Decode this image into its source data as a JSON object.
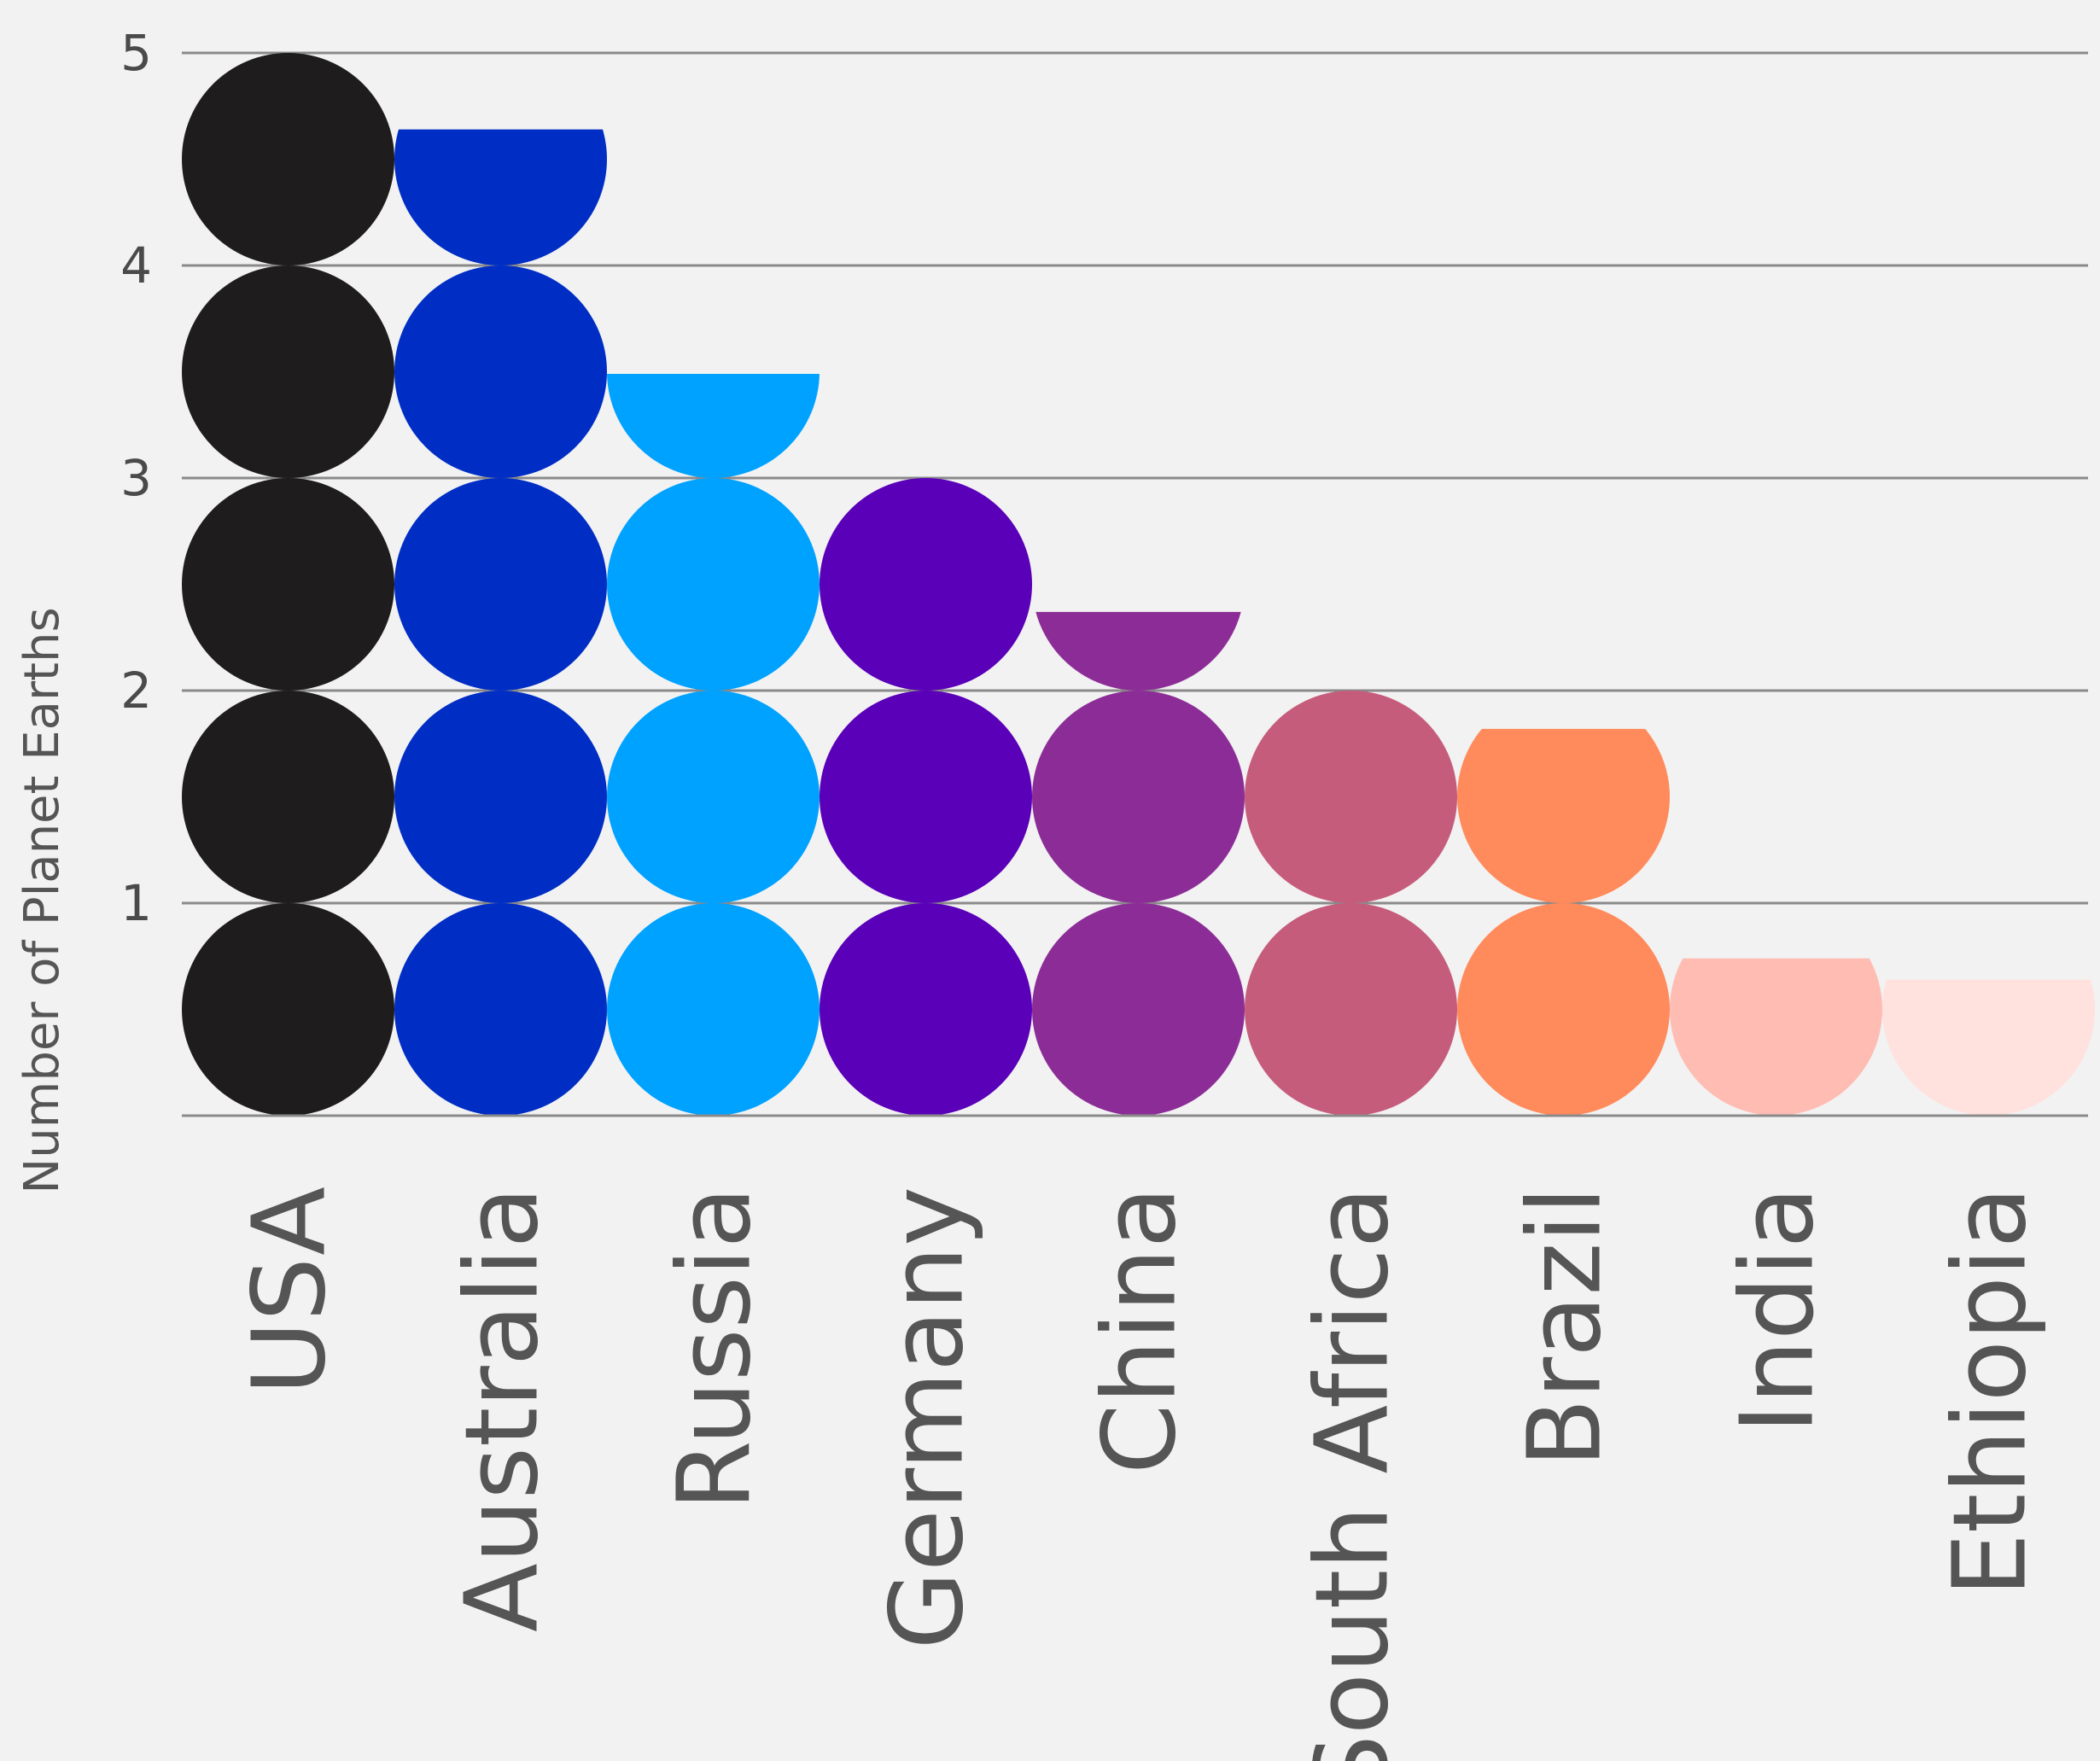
{
  "chart_data": {
    "type": "bar",
    "style": "pictogram-circles",
    "ylabel": "Number of Planet Earths",
    "ylim": [
      0,
      5
    ],
    "yticks": [
      "1",
      "2",
      "3",
      "4",
      "5"
    ],
    "grid": true,
    "legend": "none",
    "categories": [
      "USA",
      "Australia",
      "Russia",
      "Germany",
      "China",
      "South Africa",
      "Brazil",
      "India",
      "Ethiopia"
    ],
    "values": [
      5.0,
      4.64,
      3.49,
      3.0,
      2.37,
      2.0,
      1.82,
      0.74,
      0.64
    ],
    "colors": [
      "#1e1c1d",
      "#002ec4",
      "#00a2ff",
      "#5a00b8",
      "#8c2d97",
      "#c65c7b",
      "#ff8a5c",
      "#ffbcb3",
      "#ffe1de"
    ]
  }
}
